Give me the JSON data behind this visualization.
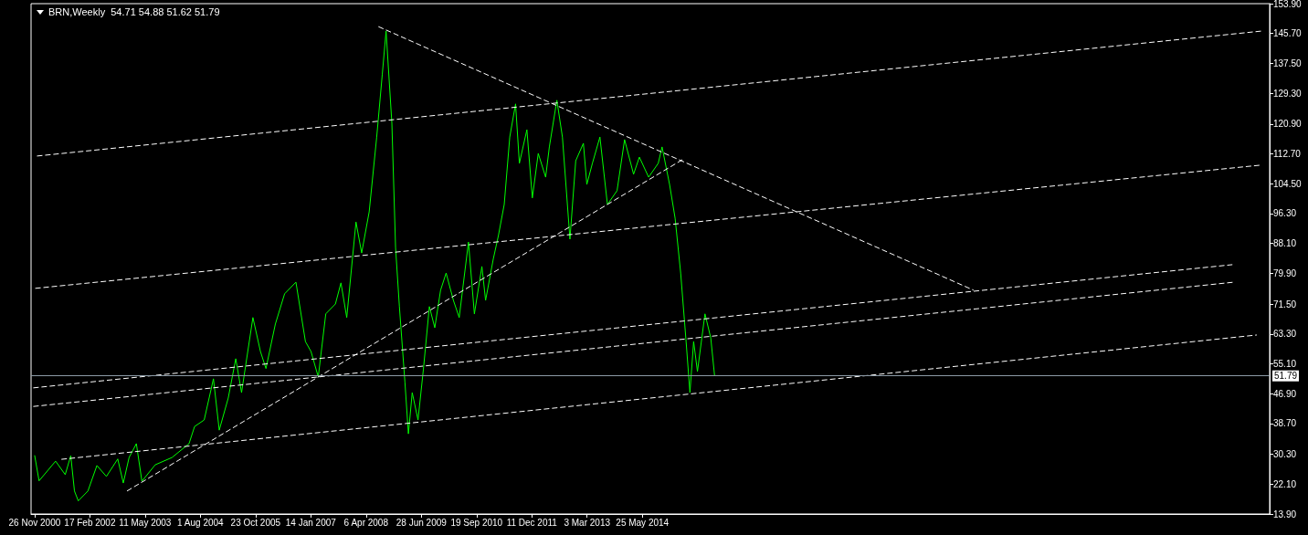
{
  "chart_data": {
    "type": "line",
    "title": "BRN,Weekly  54.71 54.88 51.62 51.79",
    "marker": "none",
    "xlim": [
      "2000-10-28",
      "2028-04-28"
    ],
    "xticks": [
      {
        "value": "2000-11-26",
        "label": "26 Nov 2000"
      },
      {
        "value": "2002-02-17",
        "label": "17 Feb 2002"
      },
      {
        "value": "2003-05-11",
        "label": "11 May 2003"
      },
      {
        "value": "2004-08-01",
        "label": "1 Aug 2004"
      },
      {
        "value": "2005-10-23",
        "label": "23 Oct 2005"
      },
      {
        "value": "2007-01-14",
        "label": "14 Jan 2007"
      },
      {
        "value": "2008-04-06",
        "label": "6 Apr 2008"
      },
      {
        "value": "2009-06-28",
        "label": "28 Jun 2009"
      },
      {
        "value": "2010-09-19",
        "label": "19 Sep 2010"
      },
      {
        "value": "2011-12-11",
        "label": "11 Dec 2011"
      },
      {
        "value": "2013-03-03",
        "label": "3 Mar 2013"
      },
      {
        "value": "2014-05-25",
        "label": "25 May 2014"
      }
    ],
    "ylim": [
      13.9,
      153.9
    ],
    "yticks": [
      {
        "value": 13.9,
        "label": "13.90"
      },
      {
        "value": 22.1,
        "label": "22.10"
      },
      {
        "value": 30.3,
        "label": "30.30"
      },
      {
        "value": 38.7,
        "label": "38.70"
      },
      {
        "value": 46.9,
        "label": "46.90"
      },
      {
        "value": 55.1,
        "label": "55.10"
      },
      {
        "value": 63.3,
        "label": "63.30"
      },
      {
        "value": 71.5,
        "label": "71.50"
      },
      {
        "value": 79.9,
        "label": "79.90"
      },
      {
        "value": 88.1,
        "label": "88.10"
      },
      {
        "value": 96.3,
        "label": "96.30"
      },
      {
        "value": 104.5,
        "label": "104.50"
      },
      {
        "value": 112.7,
        "label": "112.70"
      },
      {
        "value": 120.9,
        "label": "120.90"
      },
      {
        "value": 129.3,
        "label": "129.30"
      },
      {
        "value": 137.5,
        "label": "137.50"
      },
      {
        "value": 145.7,
        "label": "145.70"
      },
      {
        "value": 153.9,
        "label": "153.90"
      }
    ],
    "ref_lines": [
      {
        "axis": "y",
        "value": 51.79,
        "label": "51.79",
        "color": "#8c9aa6",
        "line_style": "solid"
      }
    ],
    "series": [
      {
        "color": "#00ff00",
        "x": [
          "2000-11-26",
          "2001-01-01",
          "2001-05-15",
          "2001-08-01",
          "2001-09-15",
          "2001-10-15",
          "2001-11-15",
          "2002-02-01",
          "2002-04-15",
          "2002-07-01",
          "2002-10-01",
          "2002-11-15",
          "2003-01-01",
          "2003-03-01",
          "2003-04-15",
          "2003-08-01",
          "2003-12-15",
          "2004-05-01",
          "2004-06-15",
          "2004-09-01",
          "2004-11-15",
          "2005-01-01",
          "2005-03-15",
          "2005-05-15",
          "2005-07-01",
          "2005-10-01",
          "2005-12-01",
          "2006-01-15",
          "2006-04-01",
          "2006-06-15",
          "2006-09-15",
          "2006-12-01",
          "2007-01-15",
          "2007-03-15",
          "2007-05-15",
          "2007-08-01",
          "2007-09-15",
          "2007-11-01",
          "2008-01-15",
          "2008-03-01",
          "2008-05-01",
          "2008-07-01",
          "2008-08-15",
          "2008-09-15",
          "2008-11-01",
          "2008-12-01",
          "2009-01-01",
          "2009-02-15",
          "2009-03-15",
          "2009-04-15",
          "2009-06-01",
          "2009-07-15",
          "2009-09-01",
          "2009-10-15",
          "2009-12-01",
          "2010-01-15",
          "2010-03-15",
          "2010-05-01",
          "2010-07-15",
          "2010-09-01",
          "2010-11-01",
          "2010-12-01",
          "2011-02-01",
          "2011-03-15",
          "2011-05-01",
          "2011-06-15",
          "2011-08-01",
          "2011-09-01",
          "2011-11-01",
          "2011-12-15",
          "2012-02-01",
          "2012-04-01",
          "2012-05-01",
          "2012-07-01",
          "2012-08-15",
          "2012-10-15",
          "2012-12-01",
          "2013-02-01",
          "2013-03-01",
          "2013-04-15",
          "2013-06-15",
          "2013-08-15",
          "2013-11-01",
          "2014-01-01",
          "2014-03-15",
          "2014-05-01",
          "2014-07-15",
          "2014-10-01",
          "2014-11-01",
          "2015-01-01",
          "2015-02-15",
          "2015-04-01",
          "2015-05-15",
          "2015-06-15",
          "2015-07-15",
          "2015-08-15",
          "2015-10-15",
          "2015-12-01",
          "2016-01-01"
        ],
        "values": [
          30,
          23,
          28.4,
          24.7,
          29.9,
          20.2,
          17.5,
          20.2,
          27.2,
          24.2,
          29,
          22.4,
          29.4,
          33.2,
          22.9,
          27.4,
          29.4,
          33.2,
          37.9,
          39.7,
          51,
          36.9,
          45.7,
          56.5,
          47.2,
          67.8,
          58.5,
          53.8,
          66,
          74.3,
          77.5,
          61.2,
          58.5,
          51.5,
          68.8,
          71.5,
          77.3,
          67.8,
          94,
          85.5,
          96.8,
          117.3,
          134.4,
          146.4,
          121.1,
          87,
          70.8,
          50,
          35.9,
          47.2,
          39.7,
          53.7,
          70.8,
          65,
          75.3,
          80,
          72.5,
          67.8,
          88.5,
          68.8,
          81.8,
          72.5,
          83.8,
          90.3,
          98.8,
          117.3,
          126.4,
          110.1,
          119.3,
          100.6,
          112.8,
          106.3,
          114.6,
          127.4,
          117.3,
          89.3,
          110.8,
          115.6,
          104.3,
          110.1,
          117.3,
          98.8,
          102.6,
          116.6,
          107.1,
          111.8,
          106.3,
          110.1,
          114.6,
          104.3,
          95,
          80,
          61.2,
          47.2,
          61.2,
          53,
          68.8,
          62.2,
          51.79
        ]
      },
      {
        "color": "#ffffff",
        "line_style": "dashed",
        "x": [
          "2000-12-15",
          "2028-03-01"
        ],
        "values": [
          112.1,
          146.4
        ]
      },
      {
        "color": "#ffffff",
        "line_style": "dashed",
        "x": [
          "2000-12-01",
          "2028-02-15"
        ],
        "values": [
          75.8,
          109.6
        ]
      },
      {
        "color": "#ffffff",
        "line_style": "dashed",
        "x": [
          "2000-11-15",
          "2027-07-01"
        ],
        "values": [
          48.5,
          82.3
        ]
      },
      {
        "color": "#ffffff",
        "line_style": "dashed",
        "x": [
          "2000-11-15",
          "2027-07-15"
        ],
        "values": [
          43.4,
          77.5
        ]
      },
      {
        "color": "#ffffff",
        "line_style": "dashed",
        "x": [
          "2001-07-01",
          "2028-01-15"
        ],
        "values": [
          28.9,
          63.0
        ]
      },
      {
        "color": "#ffffff",
        "line_style": "dashed",
        "x": [
          "2002-12-15",
          "2015-04-15"
        ],
        "values": [
          20.2,
          111.1
        ]
      },
      {
        "color": "#ffffff",
        "line_style": "dashed",
        "x": [
          "2008-07-15",
          "2021-10-01"
        ],
        "values": [
          147.6,
          75.3
        ]
      }
    ]
  }
}
